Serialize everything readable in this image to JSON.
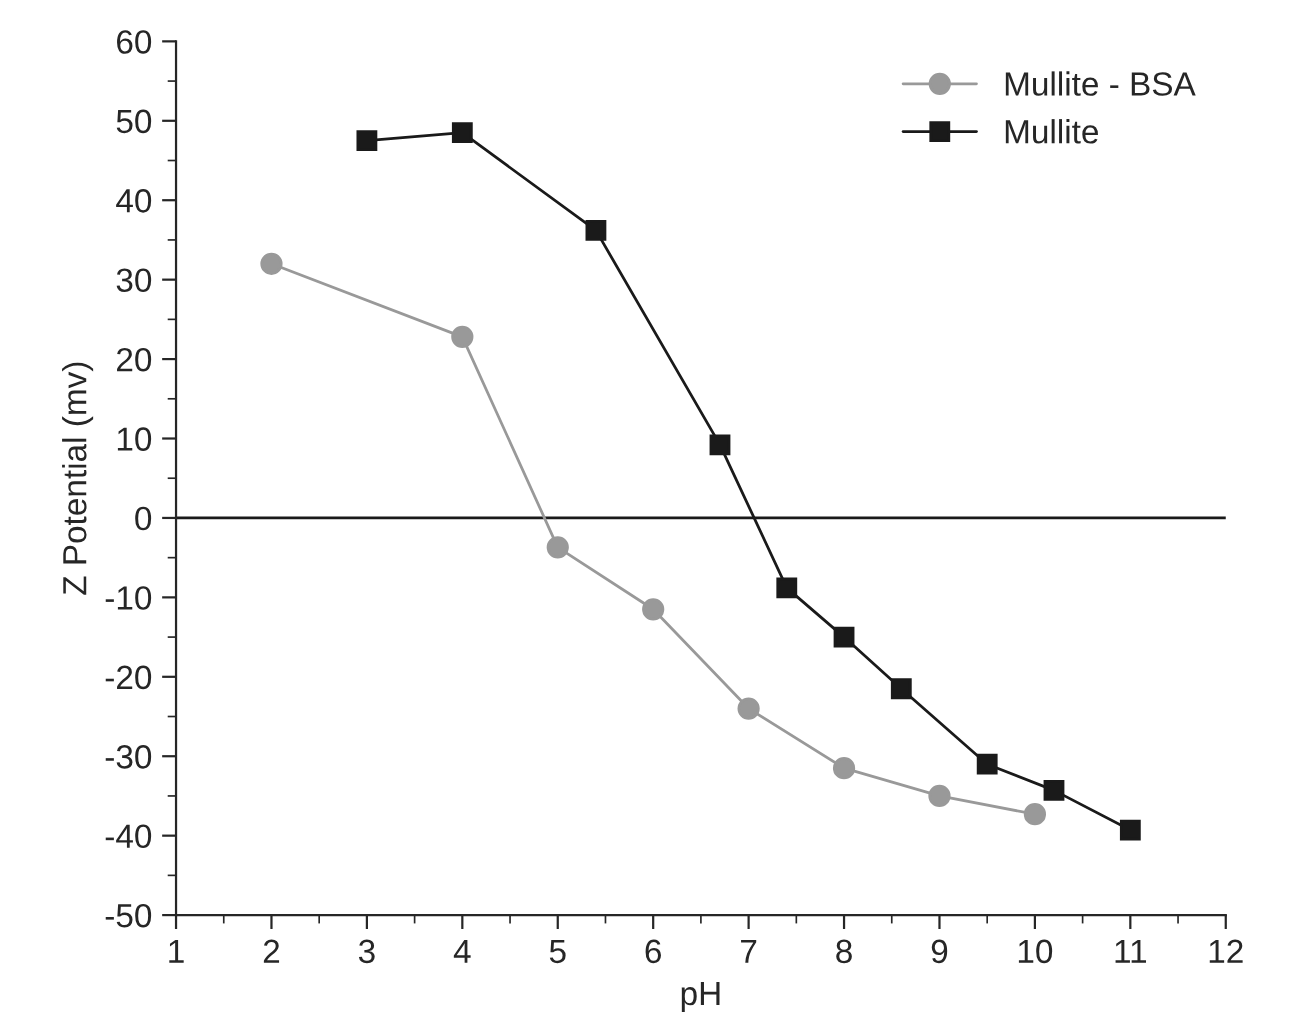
{
  "chart_data": {
    "type": "line",
    "xlabel": "pH",
    "ylabel": "Z Potential (mv)",
    "xlim": [
      1,
      12
    ],
    "xticks": [
      1,
      2,
      3,
      4,
      5,
      6,
      7,
      8,
      9,
      10,
      11,
      12
    ],
    "ylim": [
      -50,
      60
    ],
    "yticks": [
      -50,
      -40,
      -30,
      -20,
      -10,
      0,
      10,
      20,
      30,
      40,
      50,
      60
    ],
    "grid": false,
    "legend": "top right",
    "ref_lines": [
      {
        "axis": "y",
        "value": 0,
        "color": "#1a1a1a"
      }
    ],
    "series": [
      {
        "name": "Mullite - BSA",
        "color": "#999999",
        "marker": "circle",
        "x": [
          2,
          4,
          5,
          6,
          7,
          8,
          9,
          10
        ],
        "values": [
          32,
          22.8,
          -3.7,
          -11.5,
          -24,
          -31.5,
          -35,
          -37.3
        ]
      },
      {
        "name": "Mullite",
        "color": "#1a1a1a",
        "marker": "square",
        "x": [
          3,
          4,
          5.4,
          6.7,
          7.4,
          8,
          8.6,
          9.5,
          10.2,
          11
        ],
        "values": [
          47.5,
          48.5,
          36.2,
          9.2,
          -8.8,
          -15,
          -21.5,
          -31,
          -34.3,
          -39.3
        ]
      }
    ]
  }
}
